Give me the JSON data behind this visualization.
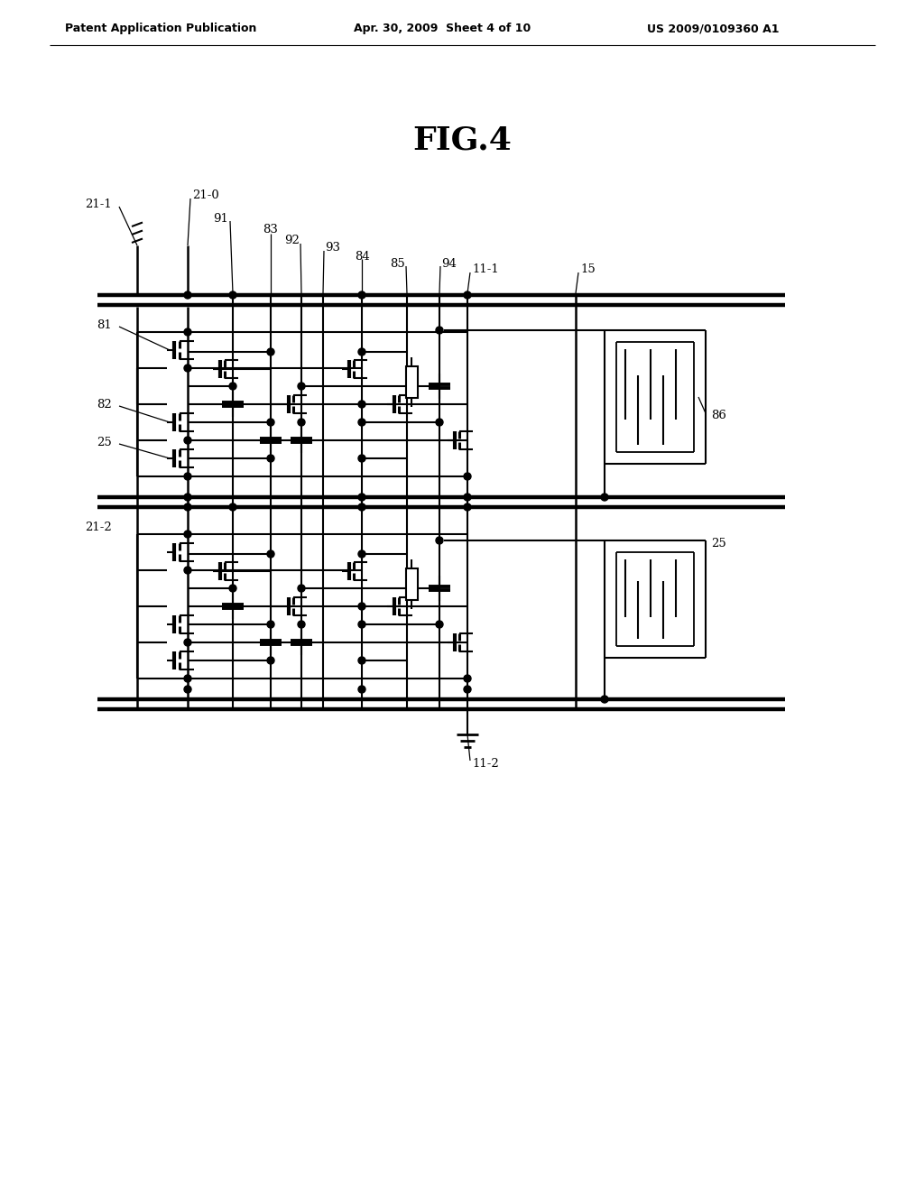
{
  "title": "FIG.4",
  "header_left": "Patent Application Publication",
  "header_mid": "Apr. 30, 2009  Sheet 4 of 10",
  "header_right": "US 2009/0109360 A1",
  "bg_color": "#ffffff",
  "fig_width": 10.24,
  "fig_height": 13.2,
  "dpi": 100
}
